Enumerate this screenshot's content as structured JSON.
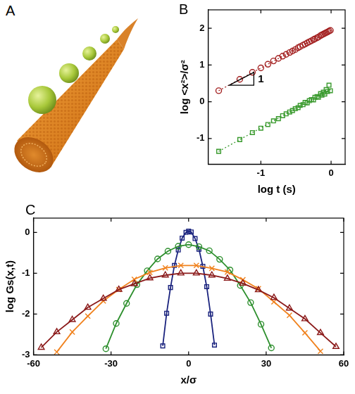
{
  "illustration": {
    "panel_label": "A"
  },
  "chart_data": [
    {
      "panel_label": "B",
      "type": "scatter",
      "x_label": "log t (s)",
      "y_label": "log <x²>/σ²",
      "xlim": [
        -1.75,
        0.2
      ],
      "xticks": [
        -1,
        0
      ],
      "ylim": [
        -1.7,
        2.5
      ],
      "yticks": [
        -1,
        0,
        1,
        2
      ],
      "grid": false,
      "annotations": [
        {
          "text": "1",
          "x": -1.0,
          "y": 0.6
        }
      ],
      "slope_marker": {
        "x": [
          -1.45,
          -1.1
        ],
        "y": [
          0.45,
          0.8
        ]
      },
      "series": [
        {
          "color": "#a32020",
          "marker": "circle",
          "x": [
            -1.6,
            -1.3,
            -1.12,
            -1.0,
            -0.9,
            -0.82,
            -0.75,
            -0.69,
            -0.64,
            -0.59,
            -0.55,
            -0.51,
            -0.47,
            -0.44,
            -0.4,
            -0.37,
            -0.34,
            -0.31,
            -0.28,
            -0.25,
            -0.23,
            -0.2,
            -0.18,
            -0.15,
            -0.13,
            -0.11,
            -0.09,
            -0.07,
            -0.05,
            -0.03,
            -0.01
          ],
          "values": [
            0.3,
            0.61,
            0.8,
            0.92,
            1.02,
            1.11,
            1.18,
            1.24,
            1.29,
            1.34,
            1.38,
            1.42,
            1.47,
            1.5,
            1.54,
            1.57,
            1.6,
            1.63,
            1.66,
            1.69,
            1.71,
            1.74,
            1.76,
            1.8,
            1.82,
            1.84,
            1.86,
            1.88,
            1.9,
            1.92,
            1.94
          ]
        },
        {
          "color": "#a32020",
          "marker": "none",
          "line_style": "dotted",
          "x": [
            -1.6,
            0
          ],
          "values": [
            0.3,
            1.95
          ]
        },
        {
          "color": "#3a9a2e",
          "marker": "square",
          "x": [
            -1.6,
            -1.3,
            -1.12,
            -1.0,
            -0.9,
            -0.82,
            -0.75,
            -0.69,
            -0.64,
            -0.59,
            -0.55,
            -0.51,
            -0.47,
            -0.44,
            -0.4,
            -0.37,
            -0.34,
            -0.31,
            -0.28,
            -0.25,
            -0.23,
            -0.2,
            -0.18,
            -0.15,
            -0.13,
            -0.11,
            -0.09,
            -0.07,
            -0.05,
            -0.03,
            -0.01
          ],
          "values": [
            -1.35,
            -1.03,
            -0.84,
            -0.72,
            -0.62,
            -0.52,
            -0.46,
            -0.38,
            -0.33,
            -0.28,
            -0.24,
            -0.19,
            -0.16,
            -0.1,
            -0.08,
            -0.02,
            -0.03,
            0.03,
            0.06,
            0.05,
            0.12,
            0.14,
            0.12,
            0.22,
            0.18,
            0.26,
            0.21,
            0.33,
            0.28,
            0.45,
            0.3
          ]
        },
        {
          "color": "#3a9a2e",
          "marker": "none",
          "line_style": "dotted",
          "x": [
            -1.6,
            0
          ],
          "values": [
            -1.35,
            0.35
          ]
        }
      ]
    },
    {
      "panel_label": "C",
      "type": "line",
      "x_label": "x/σ",
      "y_label": "log Gs(x,t)",
      "xlim": [
        -60,
        60
      ],
      "xticks": [
        -60,
        -30,
        0,
        30,
        60
      ],
      "ylim": [
        -3,
        0.35
      ],
      "yticks": [
        -3,
        -2,
        -1,
        0
      ],
      "grid": false,
      "series": [
        {
          "color": "#8b1a1a",
          "marker": "triangle",
          "x": [
            -57,
            -51,
            -45,
            -39,
            -33,
            -27,
            -21,
            -15,
            -9,
            -3,
            3,
            9,
            15,
            21,
            27,
            33,
            39,
            45,
            51,
            57
          ],
          "values": [
            -2.82,
            -2.44,
            -2.14,
            -1.84,
            -1.62,
            -1.4,
            -1.26,
            -1.12,
            -1.05,
            -1.0,
            -1.0,
            -1.05,
            -1.13,
            -1.25,
            -1.41,
            -1.6,
            -1.86,
            -2.12,
            -2.46,
            -2.8
          ]
        },
        {
          "color": "#f0821e",
          "marker": "x",
          "x": [
            -51,
            -45,
            -39,
            -33,
            -27,
            -21,
            -15,
            -9,
            -3,
            3,
            9,
            15,
            21,
            27,
            33,
            39,
            45,
            51
          ],
          "values": [
            -2.93,
            -2.44,
            -2.05,
            -1.68,
            -1.4,
            -1.15,
            -0.98,
            -0.87,
            -0.81,
            -0.81,
            -0.88,
            -0.97,
            -1.16,
            -1.38,
            -1.7,
            -2.03,
            -2.46,
            -2.91
          ]
        },
        {
          "color": "#2d8f2d",
          "marker": "circle",
          "x": [
            -32,
            -28,
            -24,
            -20,
            -16,
            -12,
            -8,
            -4,
            0,
            4,
            8,
            12,
            16,
            20,
            24,
            28,
            32
          ],
          "values": [
            -2.85,
            -2.23,
            -1.74,
            -1.28,
            -0.94,
            -0.65,
            -0.46,
            -0.34,
            -0.3,
            -0.35,
            -0.45,
            -0.66,
            -0.92,
            -1.3,
            -1.72,
            -2.25,
            -2.83
          ]
        },
        {
          "color": "#1a237e",
          "marker": "square",
          "x": [
            -10,
            -8.5,
            -7,
            -5.5,
            -4,
            -2.5,
            -1,
            0,
            1,
            2.5,
            4,
            5.5,
            7,
            8.5,
            10
          ],
          "values": [
            -2.78,
            -1.98,
            -1.35,
            -0.81,
            -0.43,
            -0.14,
            0.0,
            0.03,
            0.01,
            -0.15,
            -0.41,
            -0.83,
            -1.33,
            -2.0,
            -2.76
          ]
        }
      ]
    }
  ]
}
